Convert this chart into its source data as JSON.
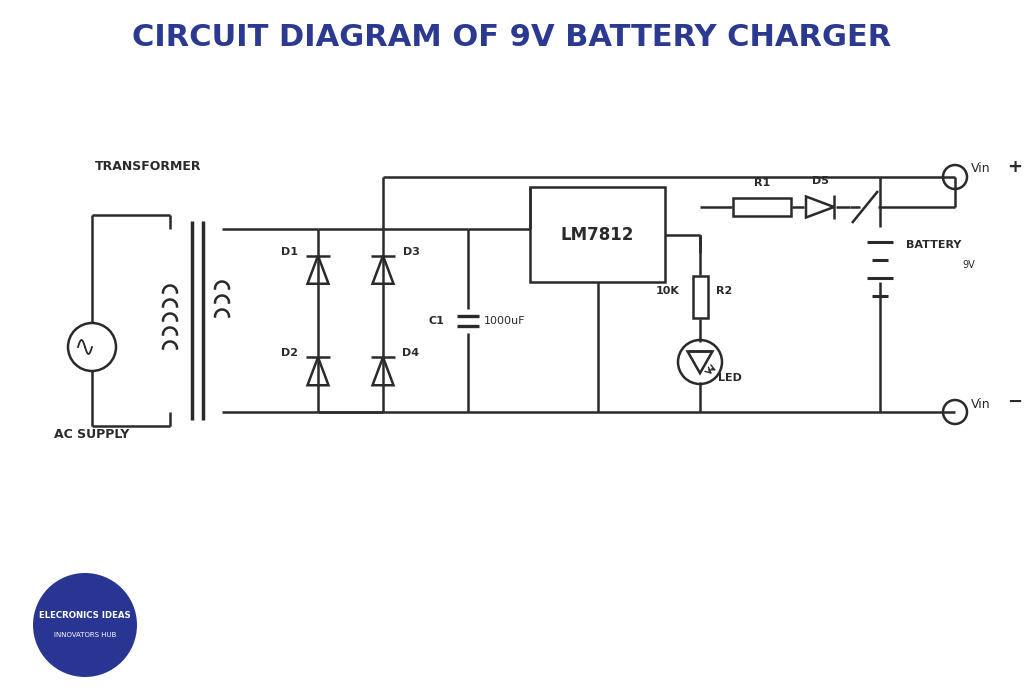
{
  "title": "CIRCUIT DIAGRAM OF 9V BATTERY CHARGER",
  "title_color": "#2b3990",
  "title_fontsize": 22,
  "bg_color": "#ffffff",
  "line_color": "#2a2a2a",
  "lw": 1.8,
  "logo_color": "#283593",
  "logo_text1": "ELECRONICS IDEAS",
  "logo_text2": "INNOVATORS HUB",
  "label_fontsize": 9,
  "label_fontsize_sm": 8
}
